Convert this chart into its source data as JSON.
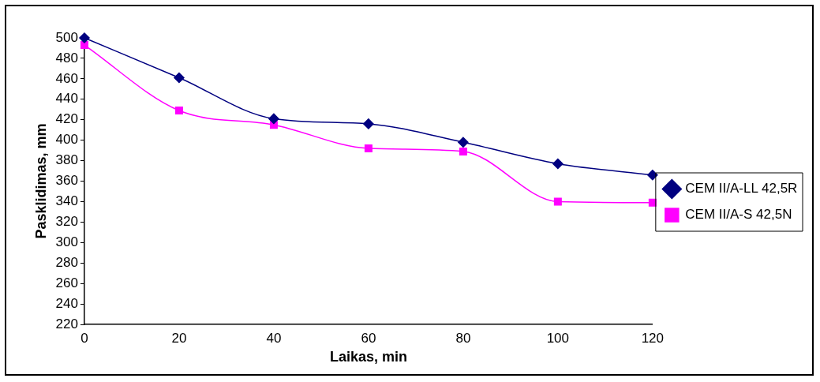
{
  "chart_data": {
    "type": "line",
    "xlabel": "Laikas, min",
    "ylabel": "Pasklidimas, mm",
    "x": [
      0,
      20,
      40,
      60,
      80,
      100,
      120
    ],
    "series": [
      {
        "name": "CEM II/A-LL 42,5R",
        "color": "#000080",
        "marker": "diamond",
        "values": [
          500,
          461,
          421,
          416,
          398,
          377,
          366
        ]
      },
      {
        "name": "CEM II/A-S 42,5N",
        "color": "#ff00ff",
        "marker": "square",
        "values": [
          493,
          429,
          415,
          392,
          389,
          340,
          339
        ]
      }
    ],
    "xlim": [
      0,
      120
    ],
    "xticks": [
      0,
      20,
      40,
      60,
      80,
      100,
      120
    ],
    "ylim": [
      220,
      500
    ],
    "yticks": [
      220,
      240,
      260,
      280,
      300,
      320,
      340,
      360,
      380,
      400,
      420,
      440,
      460,
      480,
      500
    ],
    "grid": false,
    "legend": "right"
  }
}
